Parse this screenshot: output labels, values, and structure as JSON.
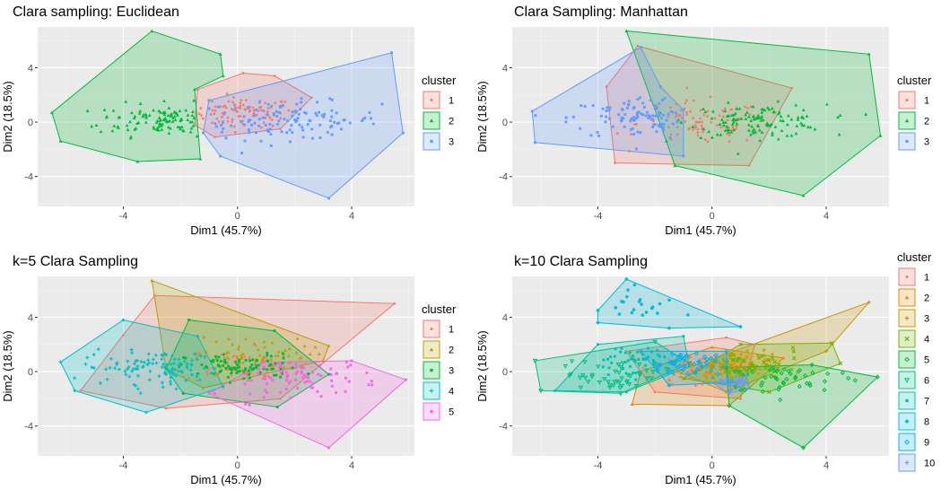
{
  "chart_data": [
    {
      "type": "scatter",
      "title": "Clara sampling: Euclidean",
      "xlabel": "Dim1 (45.7%)",
      "ylabel": "Dim2 (18.5%)",
      "xlim": [
        -7,
        6.2
      ],
      "ylim": [
        -6.2,
        7
      ],
      "xticks": [
        -4,
        0,
        4
      ],
      "yticks": [
        -4,
        0,
        4
      ],
      "grid": true,
      "legend_title": "cluster",
      "legend_position": "right",
      "clusters": [
        {
          "name": "1",
          "color": "#F8766D",
          "shape": "circle",
          "center": [
            0.2,
            0.7
          ],
          "spread": [
            0.9,
            0.55
          ],
          "n": 90,
          "hull": [
            [
              -1.4,
              2.4
            ],
            [
              0.2,
              3.6
            ],
            [
              1.3,
              3.4
            ],
            [
              2.6,
              1.8
            ],
            [
              1.5,
              -0.5
            ],
            [
              -0.8,
              -1.1
            ],
            [
              -1.5,
              -0.2
            ]
          ]
        },
        {
          "name": "2",
          "color": "#00BA38",
          "shape": "triangle",
          "center": [
            -2.5,
            0.2
          ],
          "spread": [
            1.2,
            0.6
          ],
          "n": 110,
          "hull": [
            [
              -3.0,
              6.7
            ],
            [
              -0.6,
              5.0
            ],
            [
              -0.5,
              3.4
            ],
            [
              -1.5,
              2.4
            ],
            [
              -1.3,
              -2.7
            ],
            [
              -3.5,
              -2.9
            ],
            [
              -6.2,
              -1.4
            ],
            [
              -6.5,
              0.7
            ]
          ]
        },
        {
          "name": "3",
          "color": "#619CFF",
          "shape": "square",
          "center": [
            1.8,
            0.1
          ],
          "spread": [
            1.6,
            0.7
          ],
          "n": 120,
          "hull": [
            [
              -1.0,
              1.6
            ],
            [
              5.4,
              5.1
            ],
            [
              5.8,
              -0.8
            ],
            [
              3.2,
              -5.6
            ],
            [
              -0.6,
              -2.5
            ],
            [
              -1.2,
              -0.8
            ]
          ]
        }
      ]
    },
    {
      "type": "scatter",
      "title": "Clara Sampling: Manhattan",
      "xlabel": "Dim1 (45.7%)",
      "ylabel": "Dim2 (18.5%)",
      "xlim": [
        -7,
        6.2
      ],
      "ylim": [
        -6.2,
        7
      ],
      "xticks": [
        -4,
        0,
        4
      ],
      "yticks": [
        -4,
        0,
        4
      ],
      "grid": true,
      "legend_title": "cluster",
      "legend_position": "right",
      "clusters": [
        {
          "name": "1",
          "color": "#F8766D",
          "shape": "circle",
          "center": [
            -0.4,
            -0.1
          ],
          "spread": [
            1.1,
            0.8
          ],
          "n": 90,
          "hull": [
            [
              -3.7,
              2.6
            ],
            [
              -2.6,
              5.6
            ],
            [
              2.8,
              2.5
            ],
            [
              1.3,
              -3.2
            ],
            [
              -3.4,
              -3.0
            ]
          ]
        },
        {
          "name": "2",
          "color": "#00BA38",
          "shape": "triangle",
          "center": [
            1.6,
            0.1
          ],
          "spread": [
            1.2,
            0.6
          ],
          "n": 130,
          "hull": [
            [
              -3.0,
              6.7
            ],
            [
              5.5,
              5.0
            ],
            [
              5.9,
              -1.0
            ],
            [
              3.2,
              -5.4
            ],
            [
              -1.3,
              -3.2
            ],
            [
              -1.6,
              -1.4
            ]
          ]
        },
        {
          "name": "3",
          "color": "#619CFF",
          "shape": "square",
          "center": [
            -2.4,
            0.3
          ],
          "spread": [
            1.3,
            0.8
          ],
          "n": 100,
          "hull": [
            [
              -6.3,
              0.8
            ],
            [
              -2.5,
              5.5
            ],
            [
              -1.8,
              2.6
            ],
            [
              -1.0,
              0.9
            ],
            [
              -1.0,
              -2.5
            ],
            [
              -6.2,
              -1.5
            ]
          ]
        }
      ]
    },
    {
      "type": "scatter",
      "title": "k=5 Clara Sampling",
      "xlabel": "Dim1 (45.7%)",
      "ylabel": "Dim2 (18.5%)",
      "xlim": [
        -7,
        6.2
      ],
      "ylim": [
        -6.2,
        7
      ],
      "xticks": [
        -4,
        0,
        4
      ],
      "yticks": [
        -4,
        0,
        4
      ],
      "grid": true,
      "legend_title": "cluster",
      "legend_position": "right",
      "clusters": [
        {
          "name": "1",
          "color": "#F8766D",
          "shape": "circle",
          "center": [
            0.0,
            0.5
          ],
          "spread": [
            1.0,
            0.6
          ],
          "n": 70,
          "hull": [
            [
              -5.5,
              -1.4
            ],
            [
              -4.0,
              2.7
            ],
            [
              -2.9,
              5.6
            ],
            [
              5.5,
              5.0
            ],
            [
              1.5,
              -2.0
            ],
            [
              -2.5,
              -2.7
            ]
          ]
        },
        {
          "name": "2",
          "color": "#B79F00",
          "shape": "triangle",
          "center": [
            0.5,
            1.0
          ],
          "spread": [
            1.0,
            0.8
          ],
          "n": 60,
          "hull": [
            [
              -3.0,
              6.7
            ],
            [
              3.2,
              1.9
            ],
            [
              3.0,
              0.8
            ],
            [
              -1.2,
              -1.2
            ],
            [
              -2.5,
              0.2
            ]
          ]
        },
        {
          "name": "3",
          "color": "#00BA38",
          "shape": "square",
          "center": [
            0.2,
            0.3
          ],
          "spread": [
            1.0,
            0.5
          ],
          "n": 90,
          "hull": [
            [
              -1.7,
              3.8
            ],
            [
              1.3,
              3.0
            ],
            [
              3.2,
              -0.2
            ],
            [
              1.4,
              -2.6
            ],
            [
              -1.9,
              -1.6
            ],
            [
              -2.5,
              0.2
            ]
          ]
        },
        {
          "name": "4",
          "color": "#00BFC4",
          "shape": "plus",
          "center": [
            -2.8,
            0.3
          ],
          "spread": [
            1.3,
            0.6
          ],
          "n": 110,
          "hull": [
            [
              -6.2,
              0.7
            ],
            [
              -4.0,
              3.8
            ],
            [
              -1.4,
              2.6
            ],
            [
              -0.5,
              -1.1
            ],
            [
              -3.2,
              -3.0
            ],
            [
              -5.7,
              -1.4
            ]
          ]
        },
        {
          "name": "5",
          "color": "#F564E3",
          "shape": "square",
          "center": [
            2.2,
            -0.4
          ],
          "spread": [
            1.4,
            0.7
          ],
          "n": 80,
          "hull": [
            [
              -1.0,
              -1.6
            ],
            [
              0.9,
              0.7
            ],
            [
              4.0,
              0.8
            ],
            [
              5.9,
              -0.6
            ],
            [
              3.2,
              -5.6
            ]
          ]
        }
      ]
    },
    {
      "type": "scatter",
      "title": "k=10 Clara Sampling",
      "xlabel": "Dim1 (45.7%)",
      "ylabel": "Dim2 (18.5%)",
      "xlim": [
        -7,
        6.2
      ],
      "ylim": [
        -6.2,
        7
      ],
      "xticks": [
        -4,
        0,
        4
      ],
      "yticks": [
        -4,
        0,
        4
      ],
      "grid": true,
      "legend_title": "cluster",
      "legend_position": "right",
      "clusters": [
        {
          "name": "1",
          "color": "#F8766D",
          "shape": "circle",
          "center": [
            -0.5,
            0.4
          ],
          "spread": [
            0.8,
            0.6
          ],
          "n": 40,
          "hull": [
            [
              -3.0,
              1.5
            ],
            [
              0.5,
              2.5
            ],
            [
              1.5,
              2.0
            ],
            [
              1.0,
              -2.0
            ],
            [
              -2.0,
              -1.5
            ]
          ]
        },
        {
          "name": "2",
          "color": "#E58700",
          "shape": "triangle",
          "center": [
            0.1,
            0.0
          ],
          "spread": [
            0.8,
            0.5
          ],
          "n": 45,
          "hull": [
            [
              -2.5,
              0.0
            ],
            [
              0.0,
              1.8
            ],
            [
              2.5,
              1.0
            ],
            [
              0.6,
              -2.5
            ],
            [
              -2.8,
              -2.4
            ]
          ]
        },
        {
          "name": "3",
          "color": "#C99800",
          "shape": "plus",
          "center": [
            0.8,
            0.6
          ],
          "spread": [
            0.9,
            0.6
          ],
          "n": 40,
          "hull": [
            [
              -1.2,
              0.0
            ],
            [
              5.5,
              5.1
            ],
            [
              4.0,
              1.5
            ],
            [
              0.5,
              -1.5
            ]
          ]
        },
        {
          "name": "4",
          "color": "#6BB100",
          "shape": "cross",
          "center": [
            1.2,
            0.4
          ],
          "spread": [
            1.0,
            0.6
          ],
          "n": 50,
          "hull": [
            [
              -1.0,
              -0.5
            ],
            [
              1.0,
              2.0
            ],
            [
              4.2,
              2.1
            ],
            [
              4.5,
              0.6
            ],
            [
              2.0,
              -1.5
            ]
          ]
        },
        {
          "name": "5",
          "color": "#00BA38",
          "shape": "diamond",
          "center": [
            2.3,
            -0.5
          ],
          "spread": [
            1.2,
            0.7
          ],
          "n": 45,
          "hull": [
            [
              0.5,
              0.3
            ],
            [
              3.5,
              0.5
            ],
            [
              5.8,
              -0.4
            ],
            [
              3.2,
              -5.6
            ],
            [
              0.6,
              -2.5
            ]
          ]
        },
        {
          "name": "6",
          "color": "#00BF7D",
          "shape": "triangle-down",
          "center": [
            -3.0,
            -0.3
          ],
          "spread": [
            1.2,
            0.6
          ],
          "n": 45,
          "hull": [
            [
              -6.2,
              0.8
            ],
            [
              -2.0,
              2.2
            ],
            [
              -0.8,
              0.6
            ],
            [
              -3.2,
              -1.6
            ],
            [
              -6.0,
              -1.4
            ]
          ]
        },
        {
          "name": "7",
          "color": "#00C0AF",
          "shape": "square",
          "center": [
            -2.8,
            0.8
          ],
          "spread": [
            1.0,
            0.6
          ],
          "n": 50,
          "hull": [
            [
              -4.0,
              2.0
            ],
            [
              -1.0,
              2.6
            ],
            [
              -0.8,
              0.4
            ],
            [
              -3.0,
              -1.5
            ],
            [
              -5.5,
              -1.4
            ]
          ]
        },
        {
          "name": "8",
          "color": "#00BCD8",
          "shape": "star",
          "center": [
            -2.8,
            5.0
          ],
          "spread": [
            0.7,
            0.8
          ],
          "n": 20,
          "hull": [
            [
              -3.0,
              6.8
            ],
            [
              -4.0,
              4.5
            ],
            [
              -4.0,
              3.6
            ],
            [
              -1.5,
              3.2
            ],
            [
              1.0,
              3.3
            ]
          ]
        },
        {
          "name": "9",
          "color": "#00B0F6",
          "shape": "diamond",
          "center": [
            -1.0,
            0.5
          ],
          "spread": [
            0.8,
            0.5
          ],
          "n": 45,
          "hull": [
            [
              -2.5,
              1.5
            ],
            [
              0.5,
              1.5
            ],
            [
              0.6,
              -0.8
            ],
            [
              -1.5,
              -1.0
            ]
          ]
        },
        {
          "name": "10",
          "color": "#619CFF",
          "shape": "plus",
          "center": [
            0.7,
            -0.7
          ],
          "spread": [
            0.5,
            0.4
          ],
          "n": 25,
          "hull": [
            [
              0.0,
              -0.8
            ],
            [
              1.2,
              -0.2
            ],
            [
              1.3,
              -1.2
            ],
            [
              0.6,
              -1.6
            ]
          ]
        }
      ]
    }
  ]
}
